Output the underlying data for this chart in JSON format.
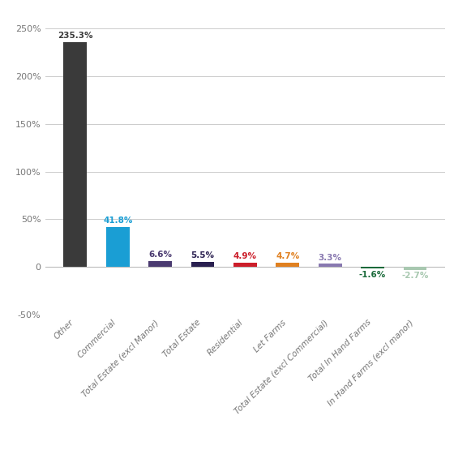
{
  "categories": [
    "Other",
    "Commercial",
    "Total Estate (excl Manor)",
    "Total Estate",
    "Residential",
    "Let Farms",
    "Total Estate (excl Commercial)",
    "Total In Hand Farms",
    "In Hand Farms (excl manor)"
  ],
  "values": [
    235.3,
    41.8,
    6.6,
    5.5,
    4.9,
    4.7,
    3.3,
    -1.6,
    -2.7
  ],
  "bar_colors": [
    "#3a3a3a",
    "#1a9ed4",
    "#4a3a70",
    "#2a2050",
    "#cc1e2a",
    "#e08020",
    "#8878b0",
    "#1a6a3a",
    "#a8c8b0"
  ],
  "label_colors": [
    "#3a3a3a",
    "#1a9ed4",
    "#4a3a70",
    "#2a2050",
    "#cc1e2a",
    "#e08020",
    "#8878b0",
    "#1a6a3a",
    "#a8c8b0"
  ],
  "labels": [
    "235.3%",
    "41.8%",
    "6.6%",
    "5.5%",
    "4.9%",
    "4.7%",
    "3.3%",
    "-1.6%",
    "-2.7%"
  ],
  "ylim": [
    -50,
    265
  ],
  "yticks": [
    -50,
    0,
    50,
    100,
    150,
    200,
    250
  ],
  "ytick_labels": [
    "-50%",
    "0",
    "50%",
    "100%",
    "150%",
    "200%",
    "250%"
  ],
  "background_color": "#ffffff",
  "grid_color": "#cccccc"
}
